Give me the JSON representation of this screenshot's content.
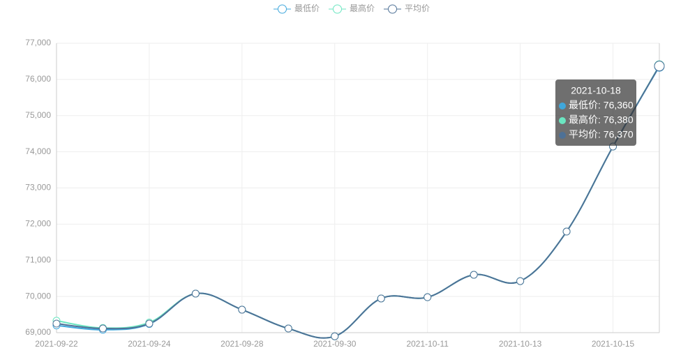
{
  "chart_data": {
    "type": "line",
    "categories": [
      "2021-09-22",
      null,
      "2021-09-24",
      null,
      "2021-09-28",
      null,
      "2021-09-30",
      null,
      "2021-10-11",
      null,
      "2021-10-13",
      null,
      "2021-10-15",
      "2021-10-18"
    ],
    "series": [
      {
        "name": "最低价",
        "color": "#3fa7dc",
        "values": [
          69200,
          69080,
          69240,
          70080,
          69635,
          69115,
          68900,
          69945,
          69980,
          70600,
          70425,
          71795,
          74145,
          76360
        ]
      },
      {
        "name": "最高价",
        "color": "#6be6c1",
        "values": [
          69330,
          69130,
          69280,
          70080,
          69635,
          69115,
          68900,
          69945,
          69980,
          70600,
          70425,
          71795,
          74145,
          76380
        ]
      },
      {
        "name": "平均价",
        "color": "#4e7196",
        "values": [
          69250,
          69115,
          69250,
          70080,
          69635,
          69115,
          68900,
          69945,
          69980,
          70600,
          70425,
          71795,
          74145,
          76370
        ]
      }
    ],
    "ylim": [
      69000,
      77000
    ],
    "yticks": [
      {
        "value": 69000,
        "label": "69,000"
      },
      {
        "value": 70000,
        "label": "70,000"
      },
      {
        "value": 71000,
        "label": "71,000"
      },
      {
        "value": 72000,
        "label": "72,000"
      },
      {
        "value": 73000,
        "label": "73,000"
      },
      {
        "value": 74000,
        "label": "74,000"
      },
      {
        "value": 75000,
        "label": "75,000"
      },
      {
        "value": 76000,
        "label": "76,000"
      },
      {
        "value": 77000,
        "label": "77,000"
      }
    ],
    "grid": true,
    "legend": "top",
    "tooltip": {
      "title": "2021-10-18",
      "lines": [
        "最低价: 76,360",
        "最高价: 76,380",
        "平均价: 76,370"
      ]
    }
  }
}
